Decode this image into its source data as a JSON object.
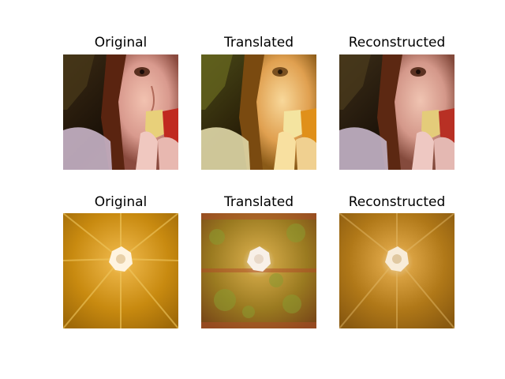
{
  "figure": {
    "rows": [
      {
        "panels": [
          {
            "title": "Original",
            "image": "portrait-original"
          },
          {
            "title": "Translated",
            "image": "portrait-translated"
          },
          {
            "title": "Reconstructed",
            "image": "portrait-reconstructed"
          }
        ]
      },
      {
        "panels": [
          {
            "title": "Original",
            "image": "orange-original"
          },
          {
            "title": "Translated",
            "image": "orange-translated"
          },
          {
            "title": "Reconstructed",
            "image": "orange-reconstructed"
          }
        ]
      }
    ]
  }
}
